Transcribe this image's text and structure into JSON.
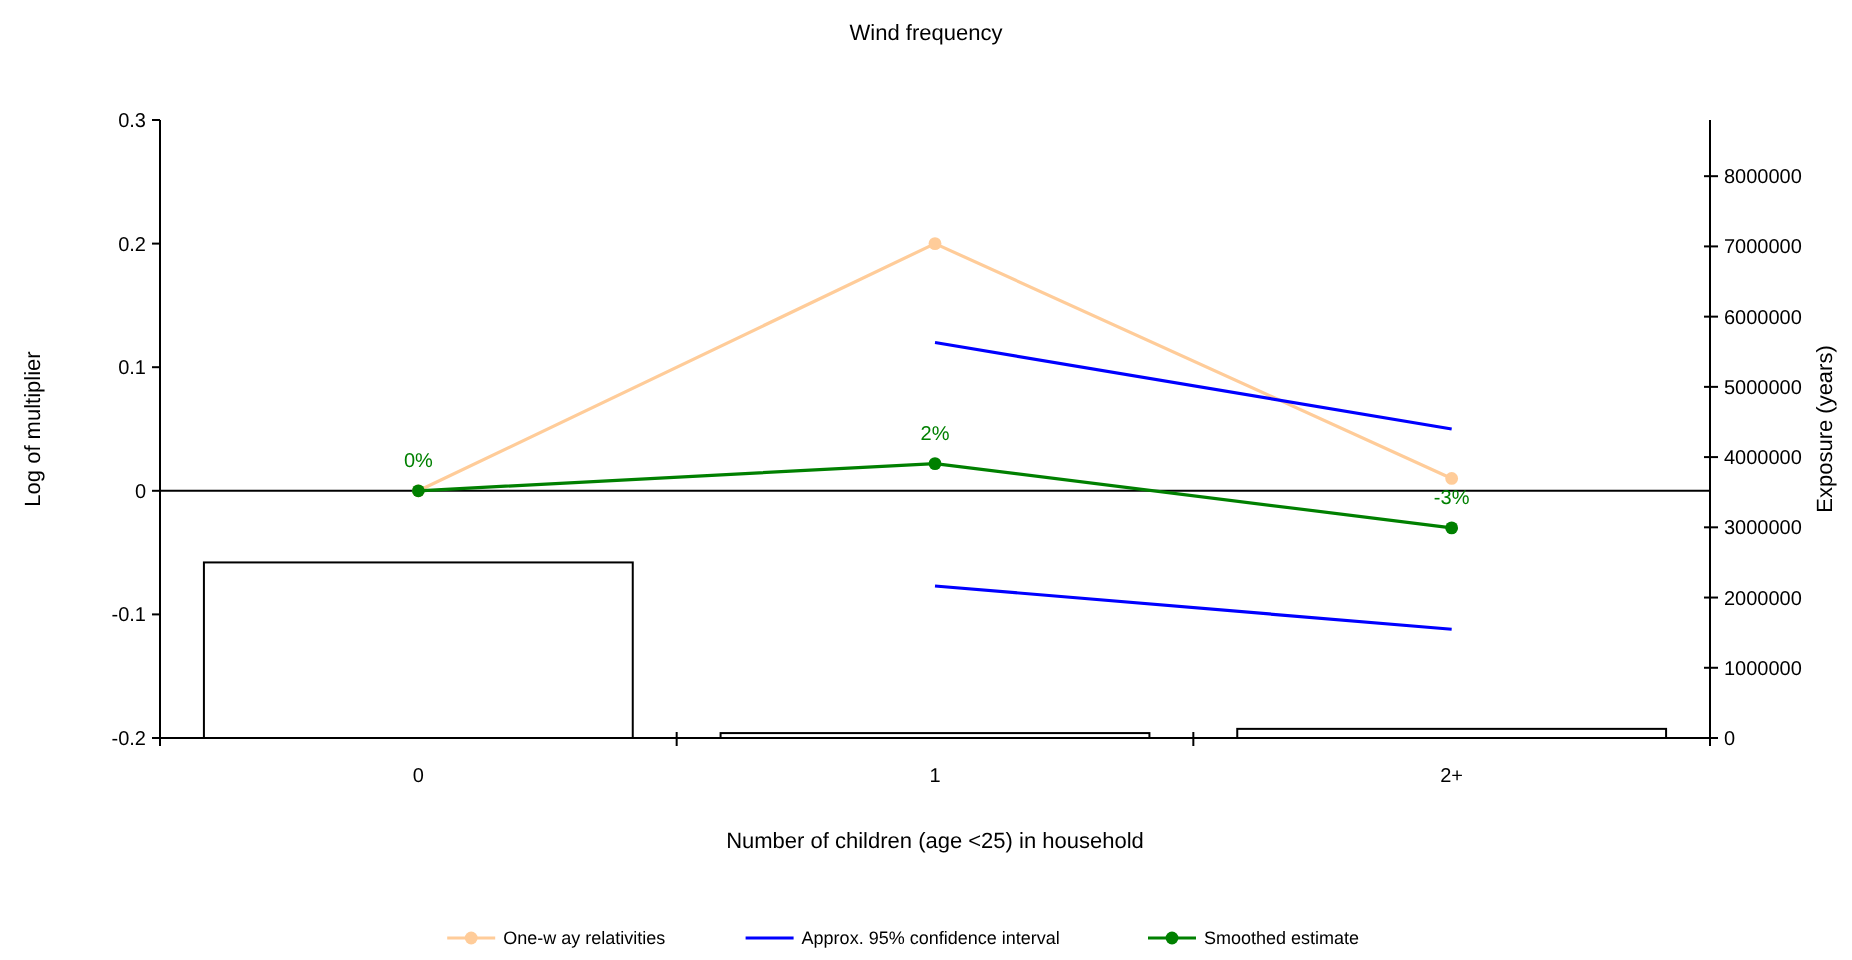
{
  "chart_data": {
    "type": "line",
    "title": "Wind frequency",
    "xlabel": "Number of children (age <25) in household",
    "ylabel": "Log of multiplier",
    "y2label": "Exposure (years)",
    "categories": [
      "0",
      "1",
      "2+"
    ],
    "ylim": [
      -0.2,
      0.3
    ],
    "yticks": [
      -0.2,
      -0.1,
      0,
      0.1,
      0.2,
      0.3
    ],
    "y2lim": [
      0,
      8800000
    ],
    "y2ticks": [
      0,
      1000000,
      2000000,
      3000000,
      4000000,
      5000000,
      6000000,
      7000000,
      8000000
    ],
    "grid": false,
    "legend": "bottom",
    "ref_lines": [
      {
        "axis": "y",
        "value": 0,
        "color": "#000000"
      }
    ],
    "series": [
      {
        "type": "bar",
        "axis": "y2",
        "color": "#ffffff",
        "values": [
          2500000,
          70000,
          130000
        ]
      },
      {
        "name": "One-w ay relativities",
        "color": "#ffcc99",
        "marker": "circle",
        "values": [
          0,
          0.2,
          0.01
        ]
      },
      {
        "name": "Approx. 95% confidence interval",
        "type": "line",
        "color": "#0000ff",
        "marker": "none",
        "values": [
          null,
          0.12,
          0.05
        ]
      },
      {
        "type": "line",
        "color": "#0000ff",
        "marker": "none",
        "values": [
          null,
          -0.077,
          -0.112
        ]
      },
      {
        "name": "Smoothed estimate",
        "color": "#008000",
        "marker": "circle",
        "values": [
          0,
          0.022,
          -0.03
        ],
        "value_labels": [
          "0%",
          "2%",
          "-3%"
        ]
      }
    ]
  }
}
